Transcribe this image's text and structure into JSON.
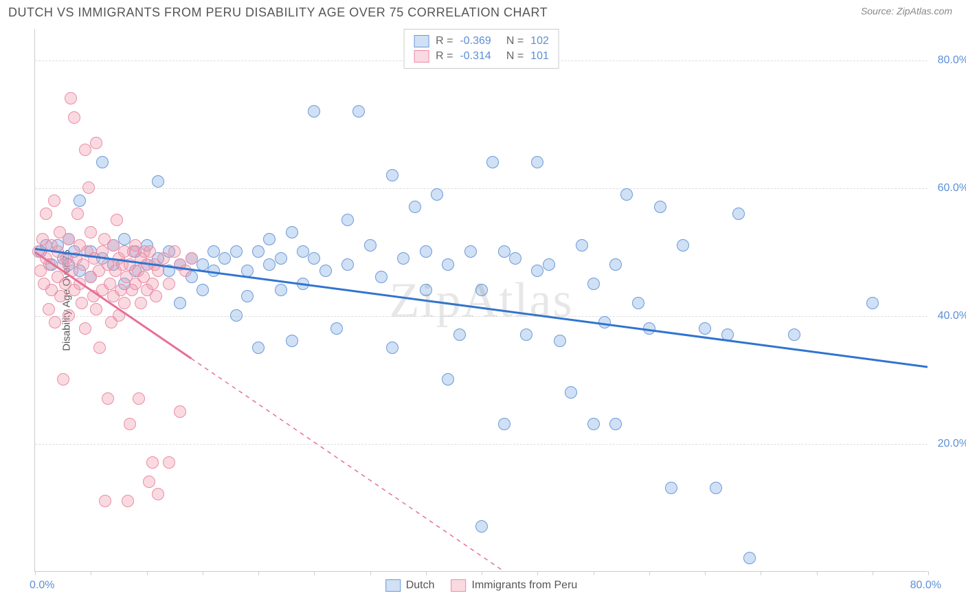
{
  "title": "DUTCH VS IMMIGRANTS FROM PERU DISABILITY AGE OVER 75 CORRELATION CHART",
  "source": "Source: ZipAtlas.com",
  "watermark": "ZipAtlas",
  "yaxis_label": "Disability Age Over 75",
  "chart": {
    "type": "scatter",
    "xlim": [
      0,
      80
    ],
    "ylim": [
      0,
      85
    ],
    "yticks": [
      20,
      40,
      60,
      80
    ],
    "ytick_labels": [
      "20.0%",
      "40.0%",
      "60.0%",
      "80.0%"
    ],
    "xtick_positions": [
      0,
      5,
      10,
      15,
      20,
      25,
      30,
      35,
      40,
      45,
      50,
      55,
      60,
      65,
      70,
      75,
      80
    ],
    "xaxis_end_labels": {
      "left": "0.0%",
      "right": "80.0%"
    },
    "background_color": "#ffffff",
    "grid_color": "#dddddd",
    "axis_color": "#cccccc",
    "label_color": "#5b8fd6",
    "marker_radius": 9,
    "series": [
      {
        "name": "Dutch",
        "fill": "rgba(120,165,225,0.35)",
        "stroke": "#6a9ad8",
        "line_color": "#2f74d0",
        "line_width": 3,
        "trend": {
          "x1": 0,
          "y1": 50.5,
          "x2": 80,
          "y2": 32,
          "solid_until_x": 80
        },
        "stats": {
          "R": "-0.369",
          "N": "102"
        },
        "points": [
          [
            0.5,
            50
          ],
          [
            1,
            51
          ],
          [
            1.5,
            48
          ],
          [
            2,
            51
          ],
          [
            2.5,
            49
          ],
          [
            3,
            52
          ],
          [
            3,
            48
          ],
          [
            3.5,
            50
          ],
          [
            4,
            47
          ],
          [
            4,
            58
          ],
          [
            5,
            50
          ],
          [
            5,
            46
          ],
          [
            6,
            64
          ],
          [
            6,
            49
          ],
          [
            7,
            51
          ],
          [
            7,
            48
          ],
          [
            8,
            45
          ],
          [
            8,
            52
          ],
          [
            9,
            50
          ],
          [
            9,
            47
          ],
          [
            10,
            48
          ],
          [
            10,
            51
          ],
          [
            11,
            49
          ],
          [
            11,
            61
          ],
          [
            12,
            47
          ],
          [
            12,
            50
          ],
          [
            13,
            48
          ],
          [
            13,
            42
          ],
          [
            14,
            49
          ],
          [
            14,
            46
          ],
          [
            15,
            48
          ],
          [
            15,
            44
          ],
          [
            16,
            50
          ],
          [
            16,
            47
          ],
          [
            17,
            49
          ],
          [
            18,
            40
          ],
          [
            18,
            50
          ],
          [
            19,
            47
          ],
          [
            19,
            43
          ],
          [
            20,
            50
          ],
          [
            20,
            35
          ],
          [
            21,
            48
          ],
          [
            21,
            52
          ],
          [
            22,
            44
          ],
          [
            22,
            49
          ],
          [
            23,
            53
          ],
          [
            23,
            36
          ],
          [
            24,
            50
          ],
          [
            24,
            45
          ],
          [
            25,
            49
          ],
          [
            25,
            72
          ],
          [
            26,
            47
          ],
          [
            27,
            38
          ],
          [
            28,
            48
          ],
          [
            28,
            55
          ],
          [
            29,
            72
          ],
          [
            30,
            51
          ],
          [
            31,
            46
          ],
          [
            32,
            35
          ],
          [
            32,
            62
          ],
          [
            33,
            49
          ],
          [
            34,
            57
          ],
          [
            35,
            44
          ],
          [
            35,
            50
          ],
          [
            36,
            59
          ],
          [
            37,
            30
          ],
          [
            37,
            48
          ],
          [
            38,
            37
          ],
          [
            39,
            50
          ],
          [
            40,
            44
          ],
          [
            40,
            7
          ],
          [
            41,
            64
          ],
          [
            42,
            50
          ],
          [
            42,
            23
          ],
          [
            43,
            49
          ],
          [
            44,
            37
          ],
          [
            45,
            47
          ],
          [
            45,
            64
          ],
          [
            46,
            48
          ],
          [
            47,
            36
          ],
          [
            48,
            28
          ],
          [
            49,
            51
          ],
          [
            50,
            45
          ],
          [
            50,
            23
          ],
          [
            51,
            39
          ],
          [
            52,
            48
          ],
          [
            52,
            23
          ],
          [
            53,
            59
          ],
          [
            54,
            42
          ],
          [
            55,
            38
          ],
          [
            56,
            57
          ],
          [
            57,
            13
          ],
          [
            58,
            51
          ],
          [
            60,
            38
          ],
          [
            61,
            13
          ],
          [
            62,
            37
          ],
          [
            63,
            56
          ],
          [
            64,
            2
          ],
          [
            68,
            37
          ],
          [
            75,
            42
          ]
        ]
      },
      {
        "name": "Immigrants from Peru",
        "fill": "rgba(240,150,170,0.35)",
        "stroke": "#e98ca5",
        "line_color": "#e86f94",
        "line_width": 3,
        "trend": {
          "x1": 0,
          "y1": 50,
          "x2": 42,
          "y2": 0,
          "solid_until_x": 14
        },
        "stats": {
          "R": "-0.314",
          "N": "101"
        },
        "points": [
          [
            0.3,
            50
          ],
          [
            0.5,
            47
          ],
          [
            0.7,
            52
          ],
          [
            0.8,
            45
          ],
          [
            1,
            49
          ],
          [
            1,
            56
          ],
          [
            1.2,
            41
          ],
          [
            1.3,
            48
          ],
          [
            1.5,
            44
          ],
          [
            1.5,
            51
          ],
          [
            1.7,
            58
          ],
          [
            1.8,
            39
          ],
          [
            2,
            50
          ],
          [
            2,
            46
          ],
          [
            2.2,
            53
          ],
          [
            2.3,
            43
          ],
          [
            2.5,
            48
          ],
          [
            2.5,
            30
          ],
          [
            2.7,
            45
          ],
          [
            2.8,
            49
          ],
          [
            3,
            52
          ],
          [
            3,
            40
          ],
          [
            3.2,
            74
          ],
          [
            3.3,
            47
          ],
          [
            3.5,
            71
          ],
          [
            3.5,
            44
          ],
          [
            3.7,
            49
          ],
          [
            3.8,
            56
          ],
          [
            4,
            45
          ],
          [
            4,
            51
          ],
          [
            4.2,
            42
          ],
          [
            4.3,
            48
          ],
          [
            4.5,
            66
          ],
          [
            4.5,
            38
          ],
          [
            4.7,
            50
          ],
          [
            4.8,
            60
          ],
          [
            5,
            46
          ],
          [
            5,
            53
          ],
          [
            5.2,
            43
          ],
          [
            5.3,
            49
          ],
          [
            5.5,
            67
          ],
          [
            5.5,
            41
          ],
          [
            5.7,
            47
          ],
          [
            5.8,
            35
          ],
          [
            6,
            50
          ],
          [
            6,
            44
          ],
          [
            6.2,
            52
          ],
          [
            6.3,
            11
          ],
          [
            6.5,
            48
          ],
          [
            6.5,
            27
          ],
          [
            6.7,
            45
          ],
          [
            6.8,
            39
          ],
          [
            7,
            51
          ],
          [
            7,
            43
          ],
          [
            7.2,
            47
          ],
          [
            7.3,
            55
          ],
          [
            7.5,
            40
          ],
          [
            7.5,
            49
          ],
          [
            7.7,
            44
          ],
          [
            7.8,
            48
          ],
          [
            8,
            42
          ],
          [
            8,
            50
          ],
          [
            8.2,
            46
          ],
          [
            8.3,
            11
          ],
          [
            8.5,
            23
          ],
          [
            8.5,
            48
          ],
          [
            8.7,
            44
          ],
          [
            8.8,
            50
          ],
          [
            9,
            51
          ],
          [
            9,
            45
          ],
          [
            9.2,
            47
          ],
          [
            9.3,
            27
          ],
          [
            9.5,
            49
          ],
          [
            9.5,
            42
          ],
          [
            9.7,
            46
          ],
          [
            9.8,
            50
          ],
          [
            10,
            44
          ],
          [
            10,
            48
          ],
          [
            10.2,
            14
          ],
          [
            10.3,
            50
          ],
          [
            10.5,
            45
          ],
          [
            10.5,
            17
          ],
          [
            10.7,
            48
          ],
          [
            10.8,
            43
          ],
          [
            11,
            47
          ],
          [
            11,
            12
          ],
          [
            11.5,
            49
          ],
          [
            12,
            45
          ],
          [
            12,
            17
          ],
          [
            12.5,
            50
          ],
          [
            13,
            48
          ],
          [
            13,
            25
          ],
          [
            13.5,
            47
          ],
          [
            14,
            49
          ]
        ]
      }
    ]
  },
  "legend": {
    "series1_label": "Dutch",
    "series2_label": "Immigrants from Peru"
  }
}
